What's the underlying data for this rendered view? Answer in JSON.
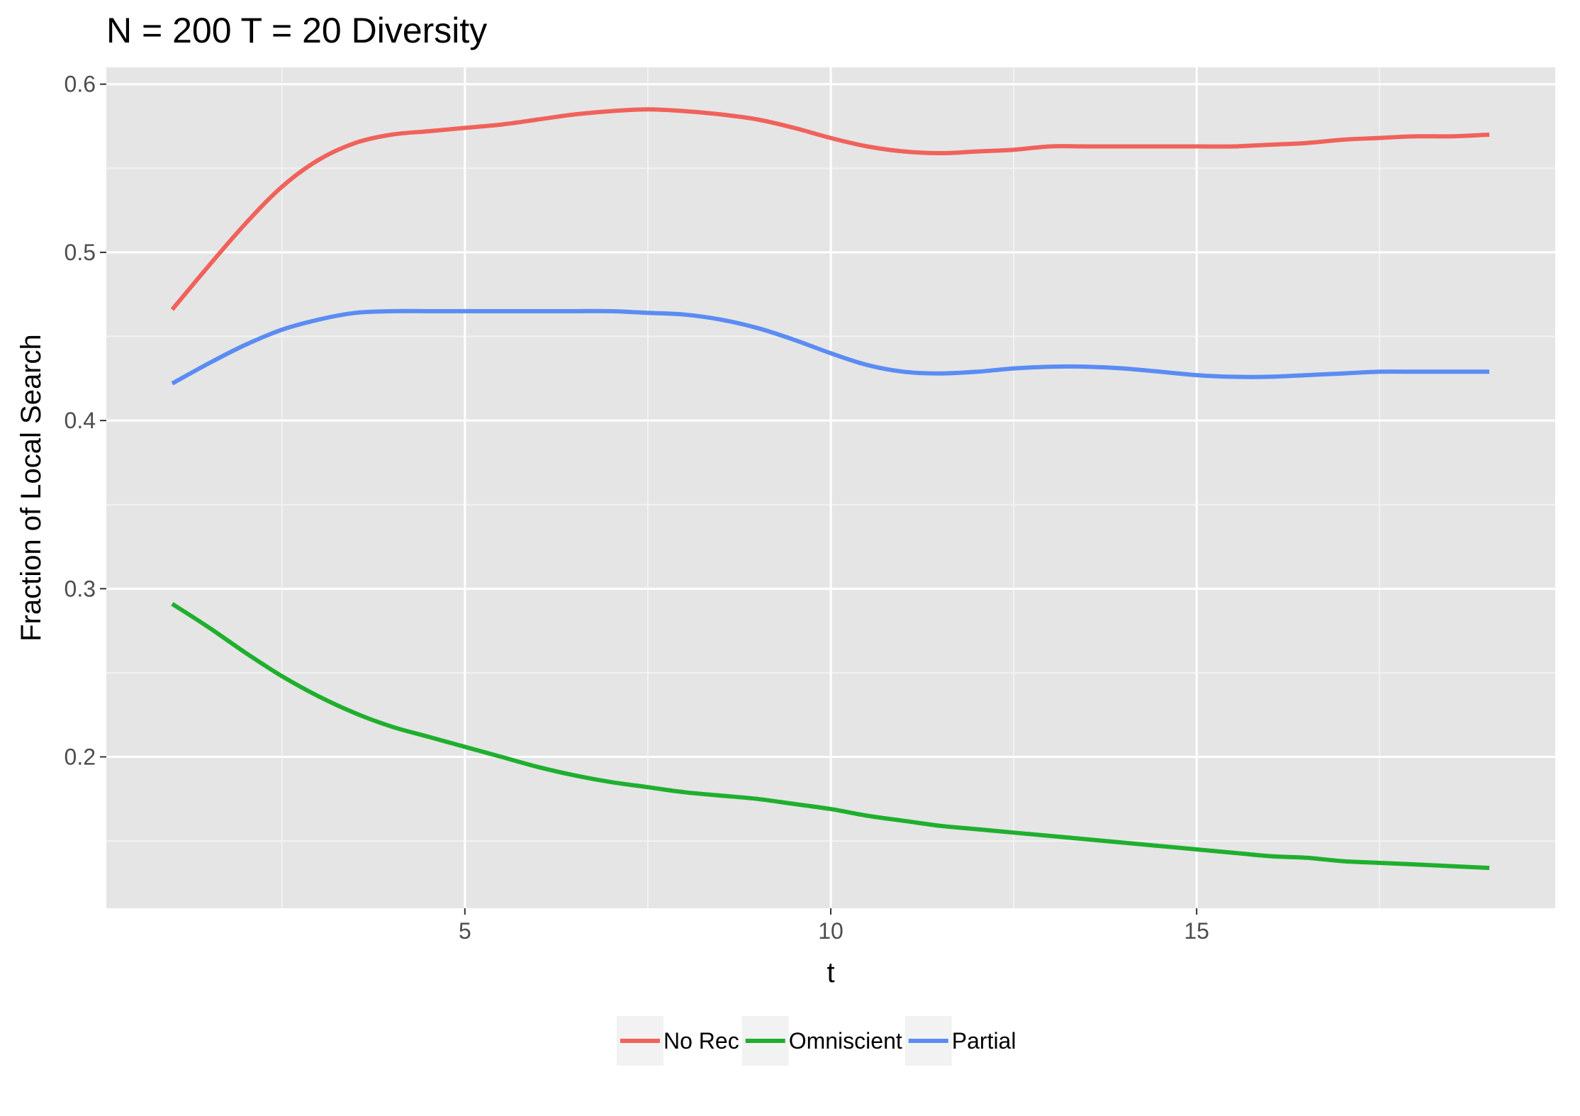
{
  "chart_data": {
    "type": "line",
    "title": "N = 200 T = 20 Diversity",
    "xlabel": "t",
    "ylabel": "Fraction of Local Search",
    "xlim": [
      0.1,
      19.9
    ],
    "ylim": [
      0.11,
      0.61
    ],
    "x_ticks": [
      5,
      10,
      15
    ],
    "x_tick_labels": [
      "5",
      "10",
      "15"
    ],
    "y_ticks": [
      0.2,
      0.3,
      0.4,
      0.5,
      0.6
    ],
    "y_tick_labels": [
      "0.2",
      "0.3",
      "0.4",
      "0.5",
      "0.6"
    ],
    "grid": true,
    "legend_position": "bottom",
    "series": [
      {
        "name": "No Rec",
        "color": "#f0625b",
        "x": [
          1,
          1.5,
          2,
          2.5,
          3,
          3.5,
          4,
          4.5,
          5,
          5.5,
          6,
          6.5,
          7,
          7.5,
          8,
          8.5,
          9,
          9.5,
          10,
          10.5,
          11,
          11.5,
          12,
          12.5,
          13,
          13.5,
          14,
          14.5,
          15,
          15.5,
          16,
          16.5,
          17,
          17.5,
          18,
          18.5,
          19
        ],
        "values": [
          0.466,
          0.492,
          0.517,
          0.539,
          0.555,
          0.565,
          0.57,
          0.572,
          0.574,
          0.576,
          0.579,
          0.582,
          0.584,
          0.585,
          0.584,
          0.582,
          0.579,
          0.574,
          0.568,
          0.563,
          0.56,
          0.559,
          0.56,
          0.561,
          0.563,
          0.563,
          0.563,
          0.563,
          0.563,
          0.563,
          0.564,
          0.565,
          0.567,
          0.568,
          0.569,
          0.569,
          0.57
        ]
      },
      {
        "name": "Omniscient",
        "color": "#1faf2e",
        "x": [
          1,
          1.5,
          2,
          2.5,
          3,
          3.5,
          4,
          4.5,
          5,
          5.5,
          6,
          6.5,
          7,
          7.5,
          8,
          8.5,
          9,
          9.5,
          10,
          10.5,
          11,
          11.5,
          12,
          12.5,
          13,
          13.5,
          14,
          14.5,
          15,
          15.5,
          16,
          16.5,
          17,
          17.5,
          18,
          18.5,
          19
        ],
        "values": [
          0.291,
          0.277,
          0.262,
          0.248,
          0.236,
          0.226,
          0.218,
          0.212,
          0.206,
          0.2,
          0.194,
          0.189,
          0.185,
          0.182,
          0.179,
          0.177,
          0.175,
          0.172,
          0.169,
          0.165,
          0.162,
          0.159,
          0.157,
          0.155,
          0.153,
          0.151,
          0.149,
          0.147,
          0.145,
          0.143,
          0.141,
          0.14,
          0.138,
          0.137,
          0.136,
          0.135,
          0.134
        ]
      },
      {
        "name": "Partial",
        "color": "#5b8cf4",
        "x": [
          1,
          1.5,
          2,
          2.5,
          3,
          3.5,
          4,
          4.5,
          5,
          5.5,
          6,
          6.5,
          7,
          7.5,
          8,
          8.5,
          9,
          9.5,
          10,
          10.5,
          11,
          11.5,
          12,
          12.5,
          13,
          13.5,
          14,
          14.5,
          15,
          15.5,
          16,
          16.5,
          17,
          17.5,
          18,
          18.5,
          19
        ],
        "values": [
          0.422,
          0.434,
          0.445,
          0.454,
          0.46,
          0.464,
          0.465,
          0.465,
          0.465,
          0.465,
          0.465,
          0.465,
          0.465,
          0.464,
          0.463,
          0.46,
          0.455,
          0.448,
          0.44,
          0.433,
          0.429,
          0.428,
          0.429,
          0.431,
          0.432,
          0.432,
          0.431,
          0.429,
          0.427,
          0.426,
          0.426,
          0.427,
          0.428,
          0.429,
          0.429,
          0.429,
          0.429
        ]
      }
    ]
  }
}
